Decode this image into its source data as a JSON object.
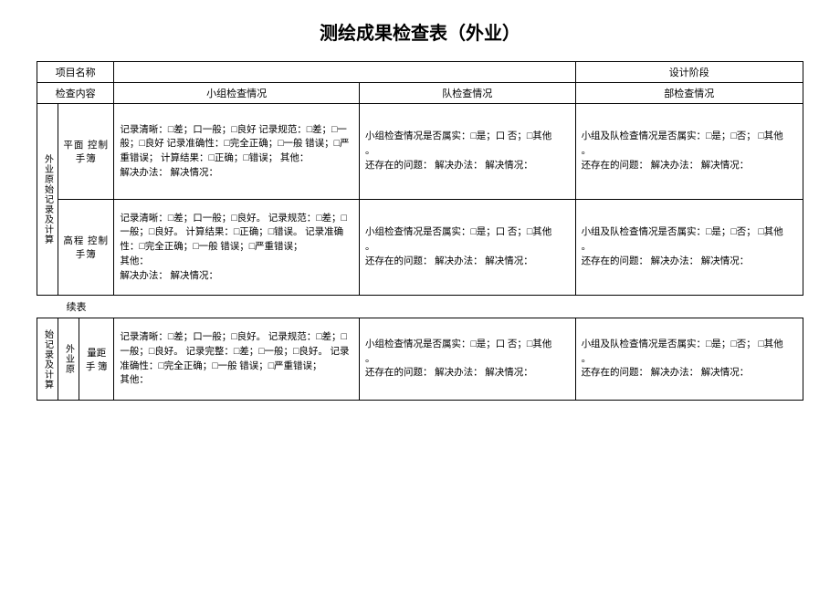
{
  "title": "测绘成果检查表（外业）",
  "header": {
    "project_name_label": "项目名称",
    "design_stage": "设计阶段",
    "check_content_label": "检查内容",
    "group_check_label": "小组检查情况",
    "team_check_label": "队检查情况",
    "dept_check_label": "部检查情况"
  },
  "section1": {
    "vert_label": "外业原始记录及计算",
    "rows": [
      {
        "sub_vert": "平面 控制 手簿",
        "group_check": "记录清晰：□差；口一般；□良好  记录规范：□差；□一般；□良好  记录准确性：□完全正确；□一般  错误；□严重错误；  计算结果：□正确；□错误；  其他：\n解决办法：  解决情况：",
        "team_check": "小组检查情况是否属实：□是；口  否；□其他\n。\n还存在的问题：  解决办法：  解决情况：",
        "dept_check": "小组及队检查情况是否属实：□是；□否；  □其他\n。\n还存在的问题：  解决办法：  解决情况："
      },
      {
        "sub_vert": "高程 控制 手簿",
        "group_check": "记录清晰：□差；口一般；□良好。  记录规范：□差；□一般；□良好。  计算结果：□正确；□错误。  记录准确性：□完全正确；□一般  错误；□严重错误；\n其他：\n解决办法：  解决情况：",
        "team_check": "小组检查情况是否属实：□是；口  否；□其他\n。\n还存在的问题：  解决办法：  解决情况：",
        "dept_check": "小组及队检查情况是否属实：□是；□否；  □其他\n。\n还存在的问题：  解决办法：  解决情况："
      }
    ]
  },
  "continue_label": "续表",
  "section2": {
    "vert_label1": "始记录及计算",
    "vert_label2": "外业原",
    "rows": [
      {
        "sub_vert": "量距 手 簿",
        "group_check": "记录清晰：□差；口一般；□良好。  记录规范：□差；□一般；□良好。  记录完整：□差；□一般；□良好。  记录准确性：□完全正确；□一般  错误；□严重错误；\n其他：",
        "team_check": "小组检查情况是否属实：□是；口  否；□其他\n。\n还存在的问题：  解决办法：  解决情况：",
        "dept_check": "小组及队检查情况是否属实：□是；□否；  □其他\n。\n还存在的问题：  解决办法：  解决情况："
      }
    ]
  },
  "colors": {
    "text": "#000000",
    "border": "#000000",
    "background": "#ffffff"
  }
}
